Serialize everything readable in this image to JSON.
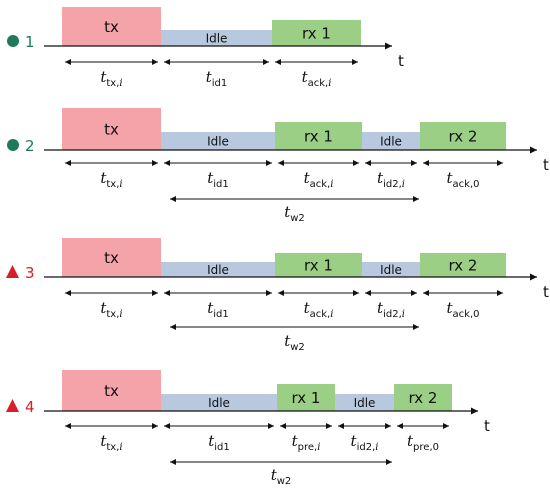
{
  "colors": {
    "tx": "#f4a3a8",
    "idle": "#b8c9df",
    "rx": "#9ccf86",
    "marker_green": "#1f7a5c",
    "marker_red": "#d61f26",
    "axis": "#111111"
  },
  "axis_label": "t",
  "rows": [
    {
      "marker_shape": "circle",
      "marker_color": "green",
      "marker_label": "1",
      "blocks": [
        {
          "kind": "tx",
          "label": "tx"
        },
        {
          "kind": "idle",
          "label": "Idle"
        },
        {
          "kind": "rx",
          "label": "rx 1"
        }
      ],
      "intervals": [
        {
          "main": "t",
          "sub": "tx,",
          "sub_italic": "i"
        },
        {
          "main": "t",
          "sub": "id1",
          "sub_italic": ""
        },
        {
          "main": "t",
          "sub": "ack,",
          "sub_italic": "i"
        }
      ],
      "tw": null
    },
    {
      "marker_shape": "circle",
      "marker_color": "green",
      "marker_label": "2",
      "blocks": [
        {
          "kind": "tx",
          "label": "tx"
        },
        {
          "kind": "idle",
          "label": "Idle"
        },
        {
          "kind": "rx",
          "label": "rx 1"
        },
        {
          "kind": "idle",
          "label": "Idle"
        },
        {
          "kind": "rx",
          "label": "rx 2"
        }
      ],
      "intervals": [
        {
          "main": "t",
          "sub": "tx,",
          "sub_italic": "i"
        },
        {
          "main": "t",
          "sub": "id1",
          "sub_italic": ""
        },
        {
          "main": "t",
          "sub": "ack,",
          "sub_italic": "i"
        },
        {
          "main": "t",
          "sub": "id2,",
          "sub_italic": "i"
        },
        {
          "main": "t",
          "sub": "ack,0",
          "sub_italic": ""
        }
      ],
      "tw": {
        "main": "t",
        "sub": "w2"
      }
    },
    {
      "marker_shape": "triangle",
      "marker_color": "red",
      "marker_label": "3",
      "blocks": [
        {
          "kind": "tx",
          "label": "tx"
        },
        {
          "kind": "idle",
          "label": "Idle"
        },
        {
          "kind": "rx",
          "label": "rx 1"
        },
        {
          "kind": "idle",
          "label": "Idle"
        },
        {
          "kind": "rx",
          "label": "rx 2"
        }
      ],
      "intervals": [
        {
          "main": "t",
          "sub": "tx,",
          "sub_italic": "i"
        },
        {
          "main": "t",
          "sub": "id1",
          "sub_italic": ""
        },
        {
          "main": "t",
          "sub": "ack,",
          "sub_italic": "i"
        },
        {
          "main": "t",
          "sub": "id2,",
          "sub_italic": "i"
        },
        {
          "main": "t",
          "sub": "ack,0",
          "sub_italic": ""
        }
      ],
      "tw": {
        "main": "t",
        "sub": "w2"
      }
    },
    {
      "marker_shape": "triangle",
      "marker_color": "red",
      "marker_label": "4",
      "blocks": [
        {
          "kind": "tx",
          "label": "tx"
        },
        {
          "kind": "idle",
          "label": "Idle"
        },
        {
          "kind": "rx",
          "label": "rx 1"
        },
        {
          "kind": "idle",
          "label": "Idle"
        },
        {
          "kind": "rx",
          "label": "rx 2"
        }
      ],
      "intervals": [
        {
          "main": "t",
          "sub": "tx,",
          "sub_italic": "i"
        },
        {
          "main": "t",
          "sub": "id1",
          "sub_italic": ""
        },
        {
          "main": "t",
          "sub": "pre,",
          "sub_italic": "i"
        },
        {
          "main": "t",
          "sub": "id2,",
          "sub_italic": "i"
        },
        {
          "main": "t",
          "sub": "pre,0",
          "sub_italic": ""
        }
      ],
      "tw": {
        "main": "t",
        "sub": "w2"
      }
    }
  ]
}
